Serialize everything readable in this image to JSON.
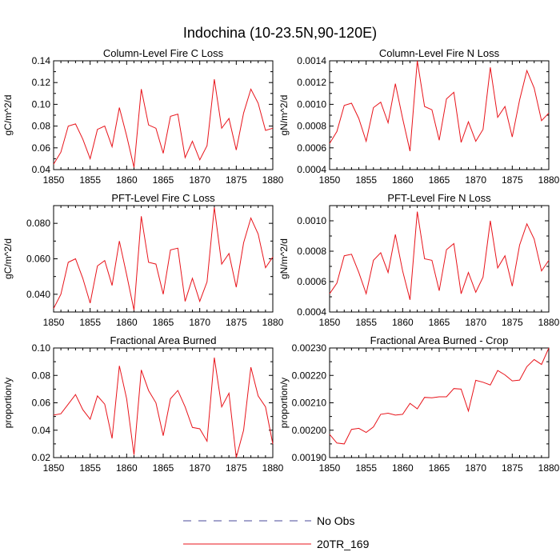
{
  "title": "Indochina (10-23.5N,90-120E)",
  "colors": {
    "model": "#e8141b",
    "obs": "#4a4a9a"
  },
  "legend": {
    "items": [
      {
        "label": "No Obs",
        "style": "dashed",
        "color": "#4a4a9a"
      },
      {
        "label": "20TR_169",
        "style": "solid",
        "color": "#e8141b"
      }
    ]
  },
  "chart_data": [
    {
      "type": "line",
      "title": "Column-Level Fire C Loss",
      "ylabel": "gC/m^2/d",
      "xlim": [
        1850,
        1880
      ],
      "ylim": [
        0.04,
        0.14
      ],
      "xticks": [
        1850,
        1855,
        1860,
        1865,
        1870,
        1875,
        1880
      ],
      "yticks": [
        "0.04",
        "0.06",
        "0.08",
        "0.10",
        "0.12",
        "0.14"
      ],
      "x": [
        1850,
        1851,
        1852,
        1853,
        1854,
        1855,
        1856,
        1857,
        1858,
        1859,
        1860,
        1861,
        1862,
        1863,
        1864,
        1865,
        1866,
        1867,
        1868,
        1869,
        1870,
        1871,
        1872,
        1873,
        1874,
        1875,
        1876,
        1877,
        1878,
        1879,
        1880
      ],
      "series": [
        {
          "name": "20TR_169",
          "values": [
            0.045,
            0.056,
            0.08,
            0.082,
            0.068,
            0.05,
            0.077,
            0.08,
            0.061,
            0.097,
            0.071,
            0.042,
            0.114,
            0.081,
            0.078,
            0.055,
            0.089,
            0.091,
            0.051,
            0.066,
            0.049,
            0.062,
            0.123,
            0.078,
            0.087,
            0.058,
            0.092,
            0.114,
            0.101,
            0.076,
            0.078
          ]
        }
      ]
    },
    {
      "type": "line",
      "title": "Column-Level Fire N Loss",
      "ylabel": "gN/m^2/d",
      "xlim": [
        1850,
        1880
      ],
      "ylim": [
        0.0004,
        0.0014
      ],
      "xticks": [
        1850,
        1855,
        1860,
        1865,
        1870,
        1875,
        1880
      ],
      "yticks": [
        "0.0004",
        "0.0006",
        "0.0008",
        "0.0010",
        "0.0012",
        "0.0014"
      ],
      "x": [
        1850,
        1851,
        1852,
        1853,
        1854,
        1855,
        1856,
        1857,
        1858,
        1859,
        1860,
        1861,
        1862,
        1863,
        1864,
        1865,
        1866,
        1867,
        1868,
        1869,
        1870,
        1871,
        1872,
        1873,
        1874,
        1875,
        1876,
        1877,
        1878,
        1879,
        1880
      ],
      "series": [
        {
          "name": "20TR_169",
          "values": [
            0.00064,
            0.00075,
            0.00099,
            0.00101,
            0.00087,
            0.00066,
            0.00097,
            0.00102,
            0.00083,
            0.00119,
            0.00087,
            0.00057,
            0.0014,
            0.00098,
            0.00095,
            0.00067,
            0.00105,
            0.00111,
            0.00065,
            0.00084,
            0.00066,
            0.00077,
            0.00134,
            0.00088,
            0.00098,
            0.0007,
            0.00104,
            0.00131,
            0.00115,
            0.00085,
            0.00092
          ]
        }
      ]
    },
    {
      "type": "line",
      "title": "PFT-Level Fire C Loss",
      "ylabel": "gC/m^2/d",
      "xlim": [
        1850,
        1880
      ],
      "ylim": [
        0.03,
        0.09
      ],
      "xticks": [
        1850,
        1855,
        1860,
        1865,
        1870,
        1875,
        1880
      ],
      "yticks": [
        "0.040",
        "0.060",
        "0.080"
      ],
      "ytick_values": [
        0.04,
        0.06,
        0.08
      ],
      "x": [
        1850,
        1851,
        1852,
        1853,
        1854,
        1855,
        1856,
        1857,
        1858,
        1859,
        1860,
        1861,
        1862,
        1863,
        1864,
        1865,
        1866,
        1867,
        1868,
        1869,
        1870,
        1871,
        1872,
        1873,
        1874,
        1875,
        1876,
        1877,
        1878,
        1879,
        1880
      ],
      "series": [
        {
          "name": "20TR_169",
          "values": [
            0.032,
            0.04,
            0.058,
            0.06,
            0.049,
            0.035,
            0.056,
            0.059,
            0.045,
            0.07,
            0.051,
            0.031,
            0.084,
            0.058,
            0.057,
            0.04,
            0.065,
            0.066,
            0.036,
            0.049,
            0.036,
            0.047,
            0.089,
            0.057,
            0.063,
            0.044,
            0.069,
            0.083,
            0.074,
            0.055,
            0.061
          ]
        }
      ]
    },
    {
      "type": "line",
      "title": "PFT-Level Fire N Loss",
      "ylabel": "gN/m^2/d",
      "xlim": [
        1850,
        1880
      ],
      "ylim": [
        0.0004,
        0.0011
      ],
      "xticks": [
        1850,
        1855,
        1860,
        1865,
        1870,
        1875,
        1880
      ],
      "yticks": [
        "0.0004",
        "0.0006",
        "0.0008",
        "0.0010"
      ],
      "ytick_values": [
        0.0004,
        0.0006,
        0.0008,
        0.001
      ],
      "x": [
        1850,
        1851,
        1852,
        1853,
        1854,
        1855,
        1856,
        1857,
        1858,
        1859,
        1860,
        1861,
        1862,
        1863,
        1864,
        1865,
        1866,
        1867,
        1868,
        1869,
        1870,
        1871,
        1872,
        1873,
        1874,
        1875,
        1876,
        1877,
        1878,
        1879,
        1880
      ],
      "series": [
        {
          "name": "20TR_169",
          "values": [
            0.00052,
            0.00059,
            0.00077,
            0.00078,
            0.00066,
            0.00052,
            0.00074,
            0.00079,
            0.00066,
            0.00091,
            0.00067,
            0.00048,
            0.00106,
            0.00075,
            0.00074,
            0.00054,
            0.00081,
            0.00085,
            0.00052,
            0.00066,
            0.00053,
            0.00063,
            0.001,
            0.00069,
            0.00077,
            0.00057,
            0.00084,
            0.00098,
            0.00088,
            0.00067,
            0.00074
          ]
        }
      ]
    },
    {
      "type": "line",
      "title": "Fractional Area Burned",
      "ylabel": "proportion/y",
      "xlim": [
        1850,
        1880
      ],
      "ylim": [
        0.02,
        0.1
      ],
      "xticks": [
        1850,
        1855,
        1860,
        1865,
        1870,
        1875,
        1880
      ],
      "yticks": [
        "0.02",
        "0.04",
        "0.06",
        "0.08",
        "0.10"
      ],
      "x": [
        1850,
        1851,
        1852,
        1853,
        1854,
        1855,
        1856,
        1857,
        1858,
        1859,
        1860,
        1861,
        1862,
        1863,
        1864,
        1865,
        1866,
        1867,
        1868,
        1869,
        1870,
        1871,
        1872,
        1873,
        1874,
        1875,
        1876,
        1877,
        1878,
        1879,
        1880
      ],
      "series": [
        {
          "name": "20TR_169",
          "values": [
            0.051,
            0.052,
            0.059,
            0.066,
            0.055,
            0.048,
            0.065,
            0.059,
            0.034,
            0.087,
            0.063,
            0.022,
            0.084,
            0.069,
            0.06,
            0.036,
            0.063,
            0.069,
            0.057,
            0.042,
            0.041,
            0.032,
            0.093,
            0.057,
            0.067,
            0.02,
            0.04,
            0.086,
            0.065,
            0.057,
            0.03
          ]
        }
      ]
    },
    {
      "type": "line",
      "title": "Fractional Area Burned - Crop",
      "ylabel": "proportion/y",
      "xlim": [
        1850,
        1880
      ],
      "ylim": [
        0.0019,
        0.0023
      ],
      "xticks": [
        1850,
        1855,
        1860,
        1865,
        1870,
        1875,
        1880
      ],
      "yticks": [
        "0.00190",
        "0.00200",
        "0.00210",
        "0.00220",
        "0.00230"
      ],
      "x": [
        1850,
        1851,
        1852,
        1853,
        1854,
        1855,
        1856,
        1857,
        1858,
        1859,
        1860,
        1861,
        1862,
        1863,
        1864,
        1865,
        1866,
        1867,
        1868,
        1869,
        1870,
        1871,
        1872,
        1873,
        1874,
        1875,
        1876,
        1877,
        1878,
        1879,
        1880
      ],
      "series": [
        {
          "name": "20TR_169",
          "values": [
            0.001985,
            0.001953,
            0.00195,
            0.002003,
            0.002007,
            0.001992,
            0.002012,
            0.002058,
            0.002062,
            0.002055,
            0.002058,
            0.002098,
            0.002078,
            0.00212,
            0.002118,
            0.002122,
            0.002122,
            0.002152,
            0.00215,
            0.00207,
            0.002182,
            0.002175,
            0.002165,
            0.002218,
            0.002202,
            0.00218,
            0.002183,
            0.002232,
            0.002258,
            0.00224,
            0.0023
          ]
        }
      ]
    }
  ]
}
